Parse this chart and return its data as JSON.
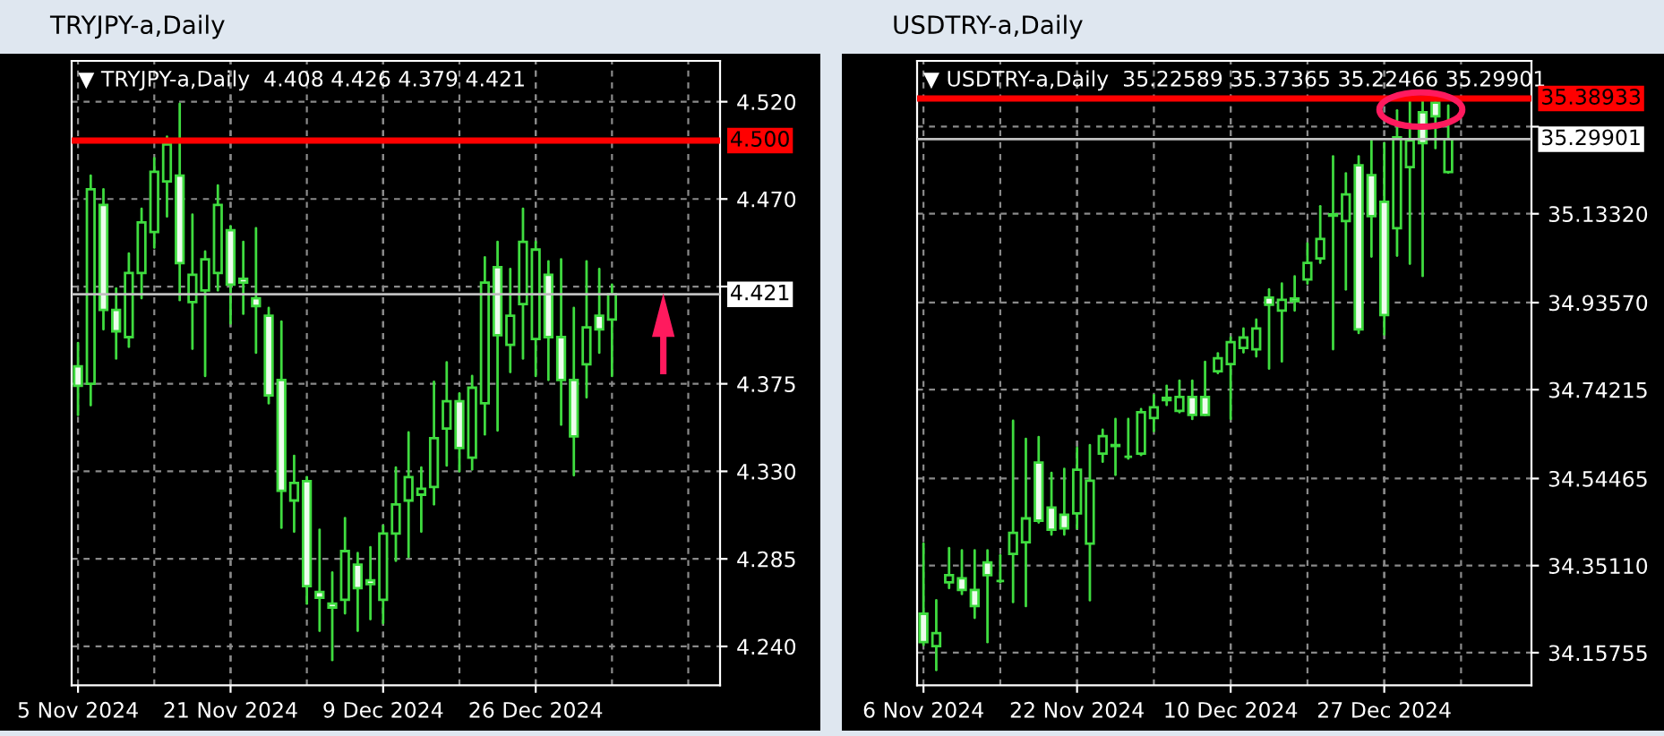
{
  "chart_data": [
    {
      "type": "candlestick",
      "title": "TRYJPY-a,Daily",
      "subtitle": "▼ TRYJPY-a,Daily  4.408 4.426 4.379 4.421",
      "categories": [
        "5 Nov 2024",
        null,
        null,
        null,
        null,
        null,
        null,
        null,
        null,
        null,
        null,
        null,
        "21 Nov 2024",
        null,
        null,
        null,
        null,
        null,
        null,
        null,
        null,
        null,
        null,
        null,
        "9 Dec 2024",
        null,
        null,
        null,
        null,
        null,
        null,
        null,
        null,
        null,
        null,
        null,
        "26 Dec 2024",
        null,
        null,
        null,
        null,
        null,
        null,
        null,
        null,
        null,
        null,
        null,
        null,
        null,
        null
      ],
      "ohlc": [
        [
          4.384,
          4.396,
          4.359,
          4.374
        ],
        [
          4.375,
          4.482,
          4.364,
          4.475
        ],
        [
          4.467,
          4.475,
          4.403,
          4.413
        ],
        [
          4.413,
          4.424,
          4.388,
          4.402
        ],
        [
          4.399,
          4.442,
          4.394,
          4.432
        ],
        [
          4.432,
          4.465,
          4.419,
          4.458
        ],
        [
          4.453,
          4.491,
          4.445,
          4.484
        ],
        [
          4.479,
          4.502,
          4.461,
          4.498
        ],
        [
          4.482,
          4.519,
          4.418,
          4.437
        ],
        [
          4.417,
          4.462,
          4.393,
          4.431
        ],
        [
          4.423,
          4.443,
          4.379,
          4.439
        ],
        [
          4.432,
          4.477,
          4.423,
          4.467
        ],
        [
          4.454,
          4.456,
          4.406,
          4.426
        ],
        [
          4.429,
          4.448,
          4.411,
          4.427
        ],
        [
          4.419,
          4.455,
          4.391,
          4.415
        ],
        [
          4.41,
          4.414,
          4.365,
          4.369
        ],
        [
          4.377,
          4.407,
          4.301,
          4.32
        ],
        [
          4.315,
          4.338,
          4.299,
          4.324
        ],
        [
          4.325,
          4.327,
          4.262,
          4.271
        ],
        [
          4.268,
          4.3,
          4.248,
          4.265
        ],
        [
          4.262,
          4.278,
          4.233,
          4.26
        ],
        [
          4.264,
          4.306,
          4.257,
          4.289
        ],
        [
          4.282,
          4.288,
          4.248,
          4.27
        ],
        [
          4.274,
          4.291,
          4.254,
          4.272
        ],
        [
          4.264,
          4.302,
          4.252,
          4.298
        ],
        [
          4.298,
          4.332,
          4.284,
          4.313
        ],
        [
          4.315,
          4.35,
          4.286,
          4.327
        ],
        [
          4.318,
          4.332,
          4.299,
          4.321
        ],
        [
          4.322,
          4.376,
          4.313,
          4.347
        ],
        [
          4.352,
          4.386,
          4.333,
          4.366
        ],
        [
          4.366,
          4.37,
          4.33,
          4.342
        ],
        [
          4.337,
          4.379,
          4.331,
          4.373
        ],
        [
          4.365,
          4.44,
          4.349,
          4.427
        ],
        [
          4.435,
          4.448,
          4.351,
          4.4
        ],
        [
          4.395,
          4.434,
          4.381,
          4.41
        ],
        [
          4.416,
          4.465,
          4.388,
          4.448
        ],
        [
          4.398,
          4.448,
          4.379,
          4.444
        ],
        [
          4.431,
          4.438,
          4.377,
          4.399
        ],
        [
          4.399,
          4.439,
          4.354,
          4.377
        ],
        [
          4.377,
          4.414,
          4.328,
          4.348
        ],
        [
          4.385,
          4.438,
          4.368,
          4.404
        ],
        [
          4.41,
          4.434,
          4.391,
          4.403
        ],
        [
          4.408,
          4.426,
          4.379,
          4.421
        ],
        null,
        null,
        null,
        null,
        null,
        null,
        null,
        null
      ],
      "colors": [
        "#3fdc3f",
        "#3fdc3f",
        "#3fdc3f",
        "#3fdc3f",
        "#3fdc3f",
        "#3fdc3f",
        "#3fdc3f",
        "#3fdc3f",
        "#3fdc3f",
        "#3fdc3f",
        "#3fdc3f",
        "#3fdc3f",
        "#3fdc3f",
        "#3fdc3f",
        "#3fdc3f",
        "#3fdc3f",
        "#3fdc3f",
        "#3fdc3f",
        "#3fdc3f",
        "#3fdc3f",
        "#3fdc3f",
        "#3fdc3f",
        "#3fdc3f",
        "#3fdc3f",
        "#3fdc3f",
        "#3fdc3f",
        "#3fdc3f",
        "#3fdc3f",
        "#3fdc3f",
        "#3fdc3f",
        "#3fdc3f",
        "#3fdc3f",
        "#3fdc3f",
        "#3fdc3f",
        "#3fdc3f",
        "#3fdc3f",
        "#3fdc3f",
        "#3fdc3f",
        "#3fdc3f",
        "#3fdc3f",
        "#3fdc3f",
        "#3fdc3f",
        "#3fdc3f",
        null,
        null,
        null,
        null,
        null,
        null,
        null,
        null
      ],
      "ylim": [
        4.22,
        4.541
      ],
      "yticks": [
        {
          "value": 4.24,
          "label": "4.240"
        },
        {
          "value": 4.285,
          "label": "4.285"
        },
        {
          "value": 4.33,
          "label": "4.330"
        },
        {
          "value": 4.375,
          "label": "4.375"
        },
        {
          "value": 4.425,
          "label": null
        },
        {
          "value": 4.47,
          "label": "4.470"
        },
        {
          "value": 4.52,
          "label": "4.520"
        }
      ],
      "ref_lines": [
        {
          "axis": "y",
          "value": 4.5,
          "label": "4.500",
          "color": "#ff0000"
        },
        {
          "axis": "y",
          "value": 4.421,
          "label": "4.421",
          "color": "#c0c0c0"
        }
      ],
      "grid": true
    },
    {
      "type": "candlestick",
      "title": "USDTRY-a,Daily",
      "subtitle": "▼ USDTRY-a,Daily  35.22589 35.37365 35.22466 35.29901",
      "categories": [
        "6 Nov 2024",
        null,
        null,
        null,
        null,
        null,
        null,
        null,
        null,
        null,
        null,
        null,
        "22 Nov 2024",
        null,
        null,
        null,
        null,
        null,
        null,
        null,
        null,
        null,
        null,
        null,
        "10 Dec 2024",
        null,
        null,
        null,
        null,
        null,
        null,
        null,
        null,
        null,
        null,
        null,
        "27 Dec 2024",
        null,
        null,
        null,
        null,
        null,
        null,
        null,
        null,
        null,
        null,
        null
      ],
      "ohlc": [
        [
          34.244,
          34.4,
          34.175,
          34.181
        ],
        [
          34.172,
          34.274,
          34.119,
          34.201
        ],
        [
          34.314,
          34.39,
          34.301,
          34.33
        ],
        [
          34.323,
          34.385,
          34.288,
          34.297
        ],
        [
          34.297,
          34.385,
          34.235,
          34.261
        ],
        [
          34.358,
          34.385,
          34.181,
          34.33
        ],
        [
          34.317,
          34.374,
          34.314,
          34.317
        ],
        [
          34.377,
          34.673,
          34.27,
          34.424
        ],
        [
          34.403,
          34.633,
          34.261,
          34.456
        ],
        [
          34.58,
          34.637,
          34.447,
          34.451
        ],
        [
          34.48,
          34.557,
          34.42,
          34.431
        ],
        [
          34.464,
          34.566,
          34.42,
          34.434
        ],
        [
          34.467,
          34.613,
          34.434,
          34.564
        ],
        [
          34.4,
          34.619,
          34.274,
          34.54
        ],
        [
          34.6,
          34.653,
          34.582,
          34.639
        ],
        [
          34.617,
          34.677,
          34.553,
          34.619
        ],
        [
          34.593,
          34.677,
          34.589,
          34.593
        ],
        [
          34.6,
          34.699,
          34.597,
          34.692
        ],
        [
          34.679,
          34.73,
          34.65,
          34.703
        ],
        [
          34.724,
          34.751,
          34.708,
          34.719
        ],
        [
          34.695,
          34.762,
          34.692,
          34.726
        ],
        [
          34.726,
          34.762,
          34.677,
          34.686
        ],
        [
          34.726,
          34.804,
          34.686,
          34.686
        ],
        [
          34.783,
          34.823,
          34.779,
          34.812
        ],
        [
          34.799,
          34.858,
          34.677,
          34.848
        ],
        [
          34.835,
          34.878,
          34.825,
          34.858
        ],
        [
          34.832,
          34.898,
          34.816,
          34.878
        ],
        [
          34.947,
          34.965,
          34.789,
          34.931
        ],
        [
          34.918,
          34.978,
          34.805,
          34.942
        ],
        [
          34.945,
          34.994,
          34.918,
          34.939
        ],
        [
          34.987,
          35.067,
          34.978,
          35.024
        ],
        [
          35.034,
          35.15,
          35.024,
          35.077
        ],
        [
          35.132,
          35.261,
          34.832,
          35.129
        ],
        [
          35.117,
          35.223,
          34.965,
          35.176
        ],
        [
          35.241,
          35.261,
          34.868,
          34.876
        ],
        [
          35.219,
          35.296,
          35.038,
          35.128
        ],
        [
          35.16,
          35.29,
          34.865,
          34.908
        ],
        [
          35.101,
          35.363,
          35.04,
          35.303
        ],
        [
          35.237,
          35.389,
          35.022,
          35.296
        ],
        [
          35.359,
          35.389,
          34.995,
          35.29
        ],
        [
          35.38,
          35.389,
          35.279,
          35.35
        ],
        [
          35.22589,
          35.37365,
          35.22466,
          35.29901
        ],
        null,
        null,
        null,
        null,
        null,
        null
      ],
      "colors": [
        "#3fdc3f",
        "#3fdc3f",
        "#3fdc3f",
        "#3fdc3f",
        "#3fdc3f",
        "#3fdc3f",
        "#3fdc3f",
        "#3fdc3f",
        "#3fdc3f",
        "#3fdc3f",
        "#3fdc3f",
        "#3fdc3f",
        "#3fdc3f",
        "#3fdc3f",
        "#3fdc3f",
        "#3fdc3f",
        "#3fdc3f",
        "#3fdc3f",
        "#3fdc3f",
        "#3fdc3f",
        "#3fdc3f",
        "#3fdc3f",
        "#3fdc3f",
        "#3fdc3f",
        "#3fdc3f",
        "#3fdc3f",
        "#3fdc3f",
        "#3fdc3f",
        "#3fdc3f",
        "#3fdc3f",
        "#3fdc3f",
        "#3fdc3f",
        "#3fdc3f",
        "#3fdc3f",
        "#3fdc3f",
        "#3fdc3f",
        "#3fdc3f",
        "#3fdc3f",
        "#3fdc3f",
        "#3fdc3f",
        "#3fdc3f",
        "#3fdc3f",
        null,
        null,
        null,
        null,
        null,
        null
      ],
      "ylim": [
        34.085,
        35.473
      ],
      "yticks": [
        {
          "value": 34.15755,
          "label": "34.15755"
        },
        {
          "value": 34.3511,
          "label": "34.35110"
        },
        {
          "value": 34.54465,
          "label": "34.54465"
        },
        {
          "value": 34.74215,
          "label": "34.74215"
        },
        {
          "value": 34.9357,
          "label": "34.93570"
        },
        {
          "value": 35.1332,
          "label": "35.13320"
        },
        {
          "value": 35.32675,
          "label": null
        }
      ],
      "ref_lines": [
        {
          "axis": "y",
          "value": 35.38933,
          "label": "35.38933",
          "color": "#ff0000"
        },
        {
          "axis": "y",
          "value": 35.29901,
          "label": "35.29901",
          "color": "#c0c0c0"
        }
      ],
      "grid": true
    }
  ]
}
